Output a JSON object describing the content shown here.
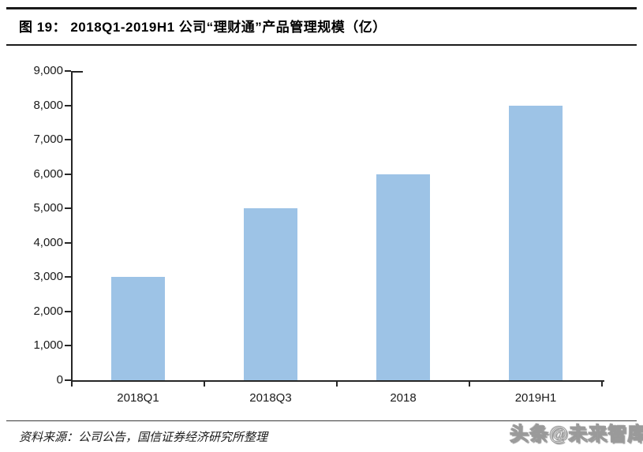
{
  "figure": {
    "title": "图 19：  2018Q1-2019H1 公司“理财通”产品管理规模（亿）",
    "source": "资料来源：公司公告，国信证券经济研究所整理",
    "watermark": "头条@未来智库"
  },
  "chart_data": {
    "type": "bar",
    "title": "2018Q1-2019H1 公司“理财通”产品管理规模（亿）",
    "categories": [
      "2018Q1",
      "2018Q3",
      "2018",
      "2019H1"
    ],
    "values": [
      3000,
      5000,
      6000,
      8000
    ],
    "xlabel": "",
    "ylabel": "",
    "ylim": [
      0,
      9000
    ],
    "ytick_step": 1000,
    "ytick_labels": [
      "0",
      "1,000",
      "2,000",
      "3,000",
      "4,000",
      "5,000",
      "6,000",
      "7,000",
      "8,000",
      "9,000"
    ],
    "bar_color": "#9DC3E6",
    "axis_color": "#262626",
    "grid": false,
    "legend": "none"
  }
}
